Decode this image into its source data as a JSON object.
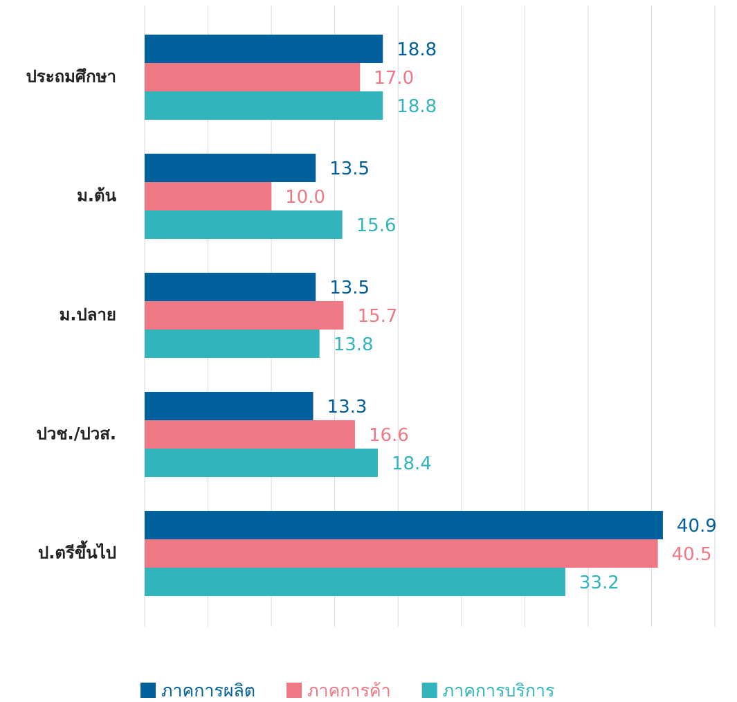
{
  "chart_data": {
    "type": "hbar",
    "categories": [
      "ประถมศึกษา",
      "ม.ต้น",
      "ม.ปลาย",
      "ปวช./ปวส.",
      "ป.ตรีขึ้นไป"
    ],
    "series": [
      {
        "name": "ภาคการผลิต",
        "color": "#00609c",
        "values": [
          18.8,
          13.5,
          13.5,
          13.3,
          40.9
        ],
        "value_labels": [
          "18.8",
          "13.5",
          "13.5",
          "13.3",
          "40.9"
        ]
      },
      {
        "name": "ภาคการค้า",
        "color": "#f07784",
        "values": [
          17.0,
          10.0,
          15.7,
          16.6,
          40.5
        ],
        "value_labels": [
          "17.0",
          "10.0",
          "15.7",
          "16.6",
          "40.5"
        ]
      },
      {
        "name": "ภาคการบริการ",
        "color": "#33b3bb",
        "values": [
          18.8,
          15.6,
          13.8,
          18.4,
          33.2
        ],
        "value_labels": [
          "18.8",
          "15.6",
          "13.8",
          "18.4",
          "33.2"
        ]
      }
    ],
    "xlim": [
      0,
      45
    ],
    "xticks": [
      0,
      5,
      10,
      15,
      20,
      25,
      30,
      35,
      40,
      45
    ],
    "grid": true,
    "legend": "bottom"
  }
}
